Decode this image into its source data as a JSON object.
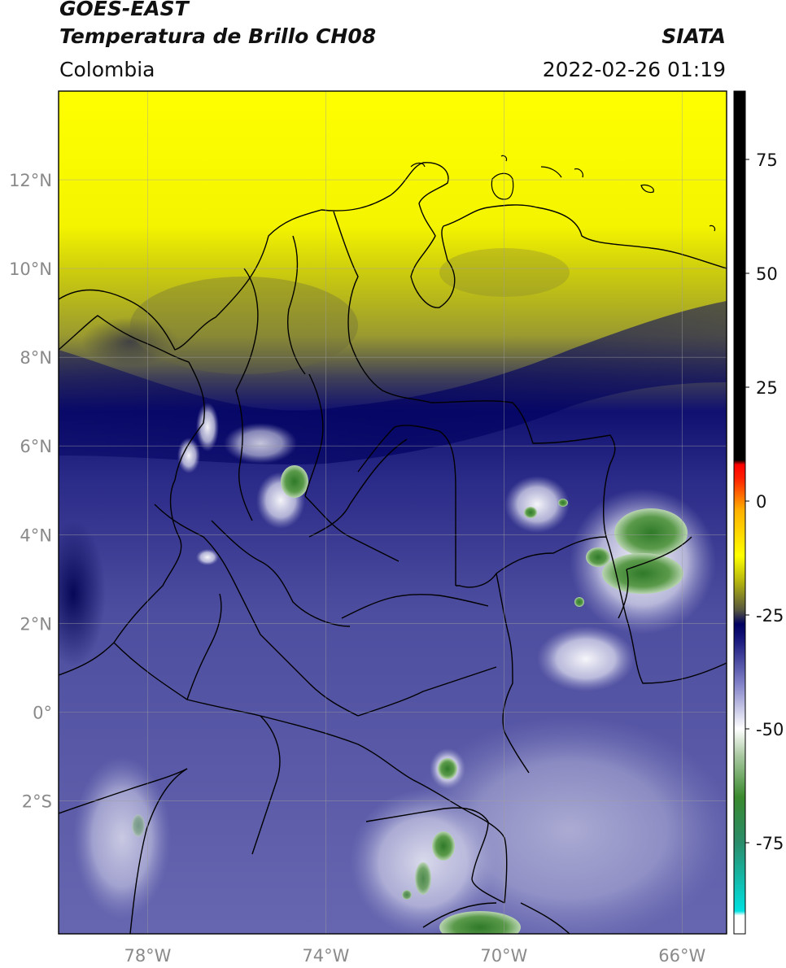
{
  "header": {
    "satellite": "GOES-EAST",
    "product": "Temperatura de Brillo CH08",
    "institution": "SIATA",
    "region": "Colombia",
    "timestamp": "2022-02-26 01:19"
  },
  "map": {
    "lon_range": [
      -80,
      -65
    ],
    "lat_range": [
      -5,
      14
    ],
    "lon_ticks": [
      {
        "value": -78,
        "label": "78°W"
      },
      {
        "value": -74,
        "label": "74°W"
      },
      {
        "value": -70,
        "label": "70°W"
      },
      {
        "value": -66,
        "label": "66°W"
      }
    ],
    "lat_ticks": [
      {
        "value": 12,
        "label": "12°N"
      },
      {
        "value": 10,
        "label": "10°N"
      },
      {
        "value": 8,
        "label": "8°N"
      },
      {
        "value": 6,
        "label": "6°N"
      },
      {
        "value": 4,
        "label": "4°N"
      },
      {
        "value": 2,
        "label": "2°N"
      },
      {
        "value": 0,
        "label": "0°"
      },
      {
        "value": -2,
        "label": "2°S"
      }
    ],
    "grid": true
  },
  "colorbar": {
    "range": [
      -95,
      90
    ],
    "ticks": [
      {
        "value": 75,
        "label": "75"
      },
      {
        "value": 50,
        "label": "50"
      },
      {
        "value": 25,
        "label": "25"
      },
      {
        "value": 0,
        "label": "0"
      },
      {
        "value": -25,
        "label": "-25"
      },
      {
        "value": -50,
        "label": "-50"
      },
      {
        "value": -75,
        "label": "-75"
      }
    ],
    "stops": [
      {
        "value": -95,
        "color": "#ffffff"
      },
      {
        "value": -91,
        "color": "#ffffff"
      },
      {
        "value": -90,
        "color": "#00e0e0"
      },
      {
        "value": -75,
        "color": "#2a8c6a"
      },
      {
        "value": -65,
        "color": "#3a8a2e"
      },
      {
        "value": -56,
        "color": "#a8c8a0"
      },
      {
        "value": -50,
        "color": "#ffffff"
      },
      {
        "value": -40,
        "color": "#8080c8"
      },
      {
        "value": -30,
        "color": "#14147a"
      },
      {
        "value": -27,
        "color": "#000060"
      },
      {
        "value": -24,
        "color": "#555540"
      },
      {
        "value": -18,
        "color": "#b0b010"
      },
      {
        "value": -12,
        "color": "#ffff00"
      },
      {
        "value": -2,
        "color": "#ffb000"
      },
      {
        "value": 5,
        "color": "#ff2000"
      },
      {
        "value": 8,
        "color": "#ff0000"
      },
      {
        "value": 9,
        "color": "#000000"
      },
      {
        "value": 90,
        "color": "#000000"
      }
    ]
  }
}
